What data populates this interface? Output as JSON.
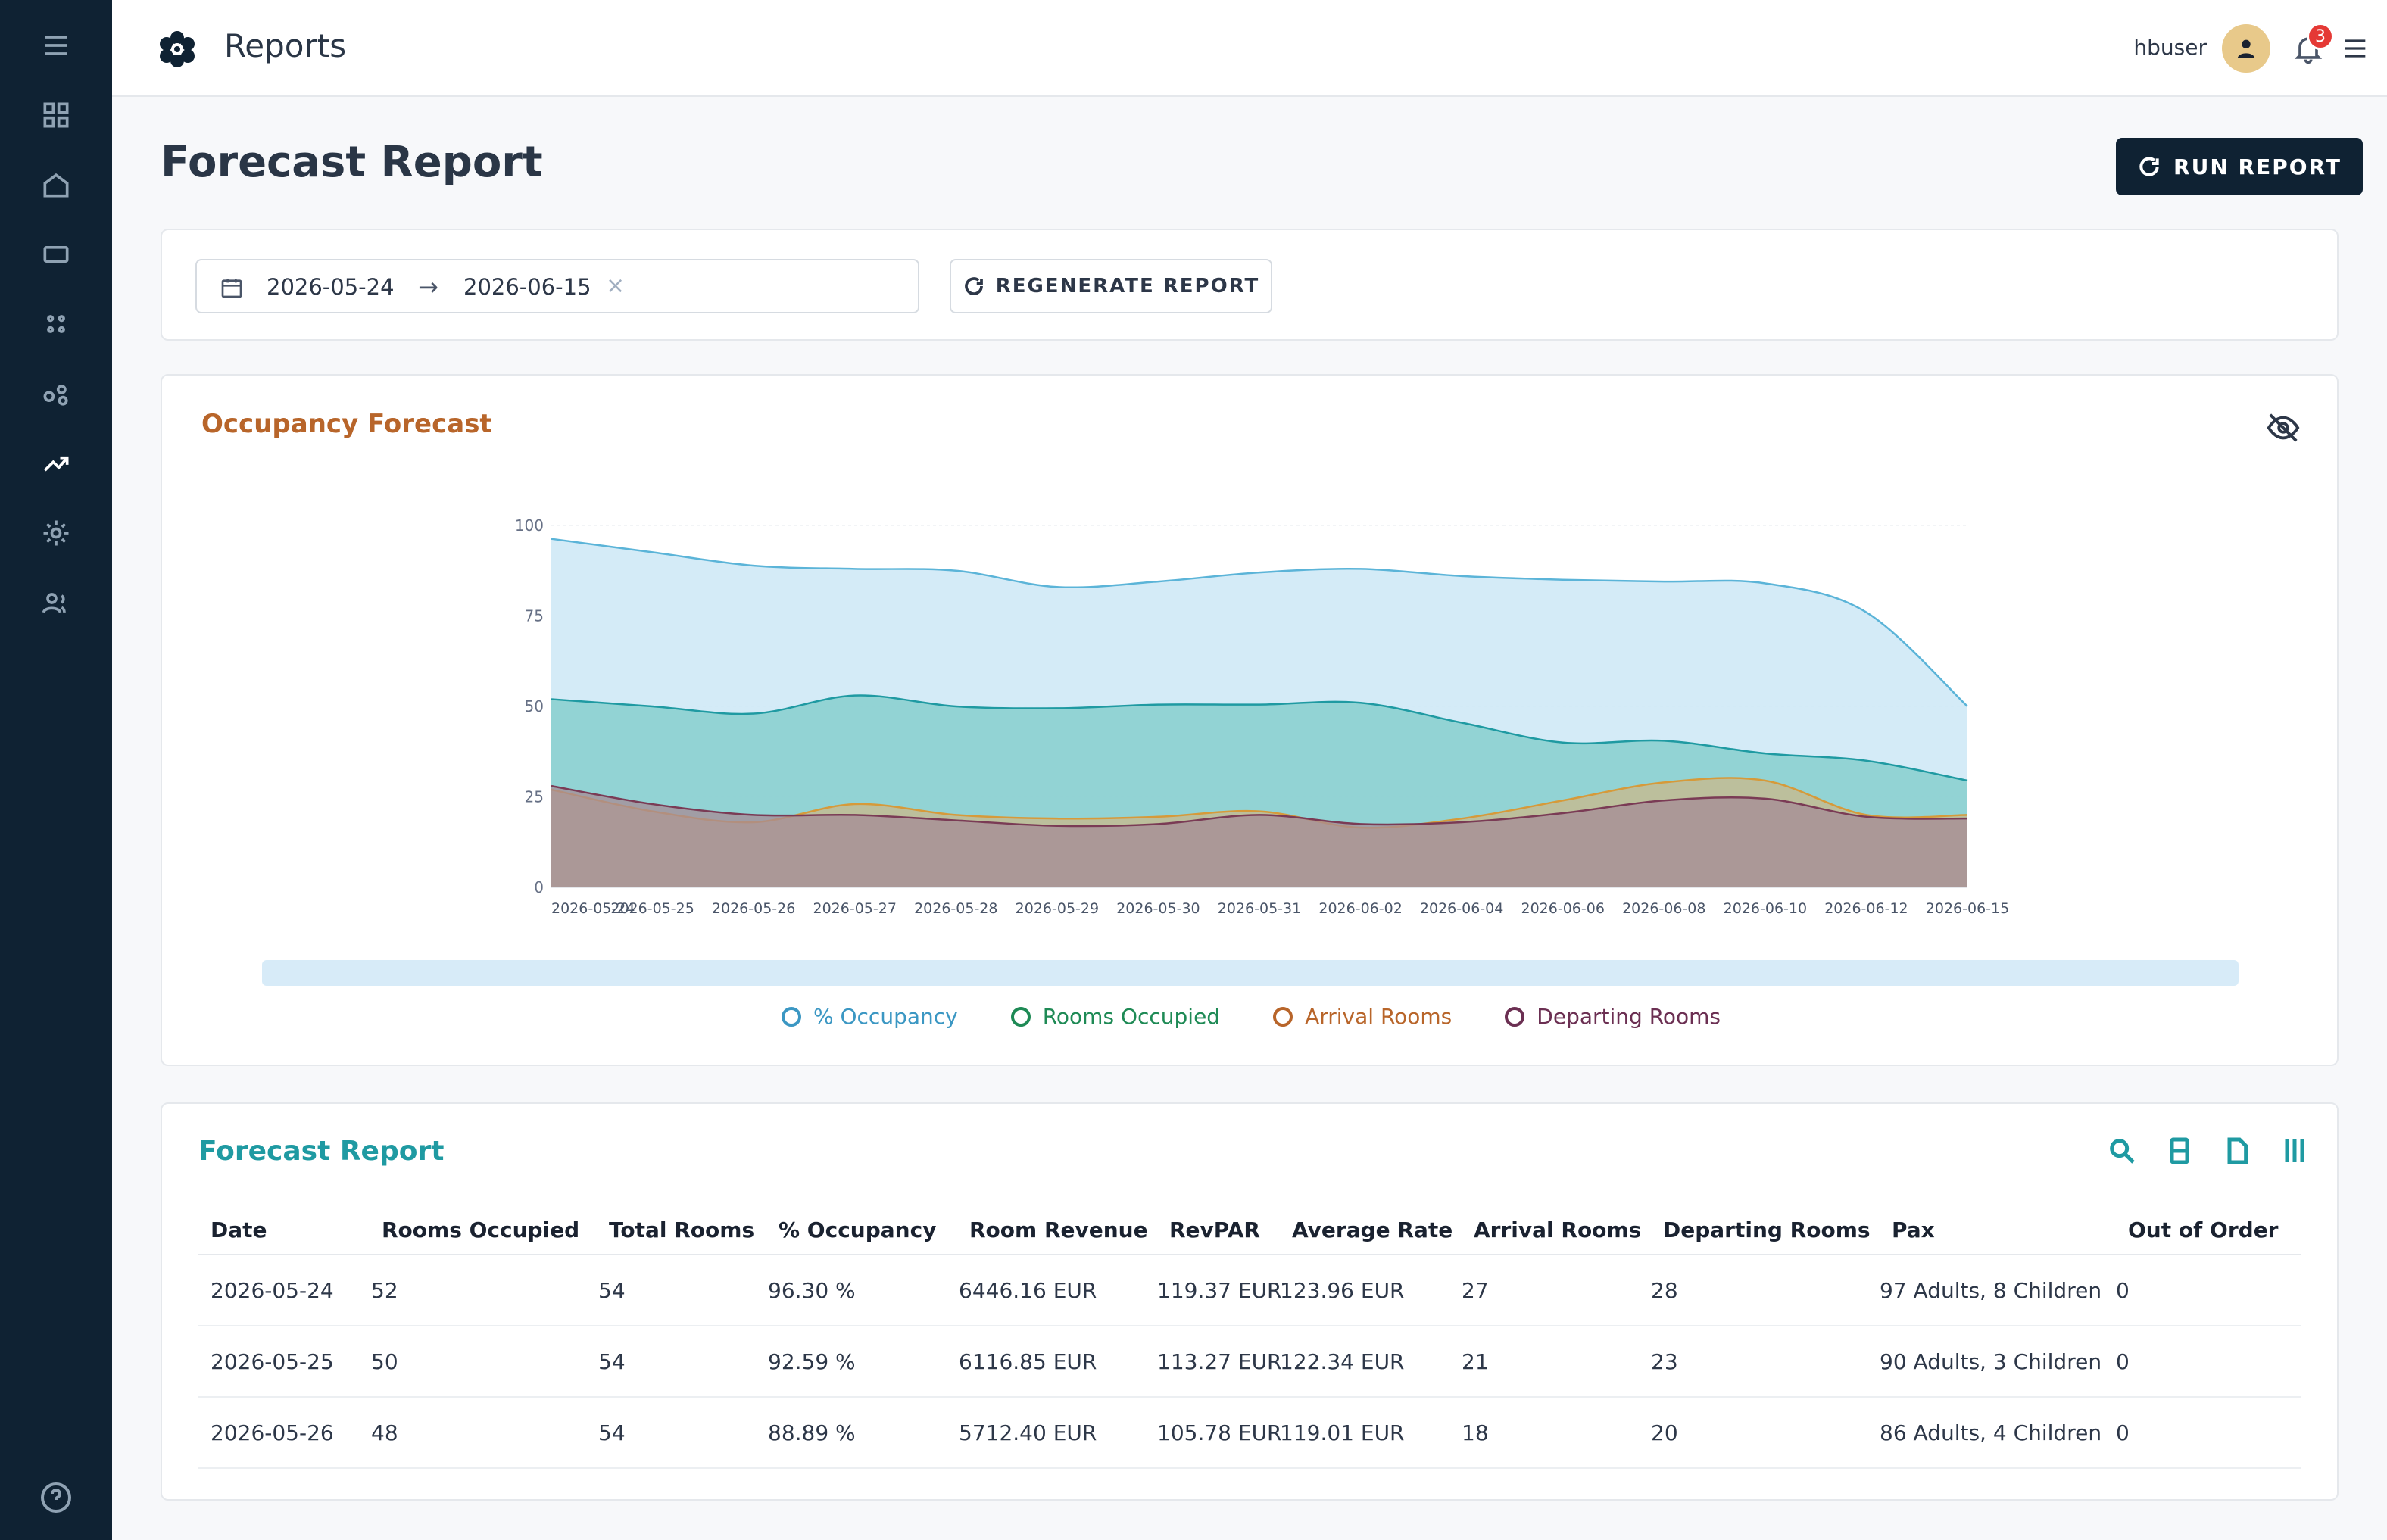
{
  "header": {
    "app_title": "Reports",
    "username": "hbuser",
    "notification_count": "3"
  },
  "sidebar": {
    "items": [
      {
        "icon": "menu-icon"
      },
      {
        "icon": "dashboard-icon"
      },
      {
        "icon": "home-icon"
      },
      {
        "icon": "rectangle-icon"
      },
      {
        "icon": "dots-grid-icon"
      },
      {
        "icon": "nodes-icon"
      },
      {
        "icon": "trending-up-icon",
        "active": true
      },
      {
        "icon": "gear-icon"
      },
      {
        "icon": "users-icon"
      }
    ],
    "footer_icon": "help-icon"
  },
  "page": {
    "title": "Forecast Report",
    "run_button": "RUN REPORT"
  },
  "filter": {
    "start_date": "2026-05-24",
    "end_date": "2026-06-15",
    "arrow": "→",
    "clear": "×",
    "regenerate_button": "REGENERATE REPORT"
  },
  "chart_card": {
    "title": "Occupancy Forecast"
  },
  "chart_data": {
    "type": "area",
    "title": "Occupancy Forecast",
    "ylim": [
      0,
      100
    ],
    "yticks": [
      0,
      25,
      50,
      75,
      100
    ],
    "grid": true,
    "legend_position": "bottom",
    "x": [
      "2026-05-24",
      "2026-05-25",
      "2026-05-26",
      "2026-05-27",
      "2026-05-28",
      "2026-05-29",
      "2026-05-30",
      "2026-05-31",
      "2026-06-02",
      "2026-06-04",
      "2026-06-06",
      "2026-06-08",
      "2026-06-10",
      "2026-06-12",
      "2026-06-15"
    ],
    "series": [
      {
        "name": "% Occupancy",
        "color": "#5bb4d8",
        "fill": "#cde8f6",
        "values": [
          96.3,
          92.59,
          88.89,
          88,
          87.5,
          83,
          84.5,
          87,
          88,
          86,
          85,
          84.5,
          84,
          76,
          50
        ]
      },
      {
        "name": "Rooms Occupied",
        "color": "#1f9aa2",
        "fill": "#7ccbc8",
        "values": [
          52,
          50,
          48,
          53,
          50,
          49.5,
          50.5,
          50.5,
          51,
          45.5,
          40,
          40.5,
          37,
          35,
          29.5
        ]
      },
      {
        "name": "Arrival Rooms",
        "color": "#d69a3a",
        "fill": "#c9b88a",
        "values": [
          27,
          21,
          18,
          23,
          20,
          19,
          19.5,
          21,
          16.5,
          19,
          24,
          29,
          29.5,
          20,
          20
        ]
      },
      {
        "name": "Departing Rooms",
        "color": "#7a3b55",
        "fill": "#a68b96",
        "values": [
          28,
          23,
          20,
          20,
          18.5,
          17,
          17.5,
          20,
          17.5,
          18,
          20.5,
          24,
          24.5,
          19.5,
          19
        ]
      }
    ]
  },
  "legend": {
    "items": [
      {
        "label": "% Occupancy",
        "color": "#3b97c3"
      },
      {
        "label": "Rooms Occupied",
        "color": "#1e8a55"
      },
      {
        "label": "Arrival Rooms",
        "color": "#b8652a"
      },
      {
        "label": "Departing Rooms",
        "color": "#6b2f52"
      }
    ]
  },
  "table": {
    "title": "Forecast Report",
    "columns": [
      "Date",
      "Rooms Occupied",
      "Total Rooms",
      "% Occupancy",
      "Room Revenue",
      "RevPAR",
      "Average Rate",
      "Arrival Rooms",
      "Departing Rooms",
      "Pax",
      "Out of Order"
    ],
    "rows": [
      [
        "2026-05-24",
        "52",
        "54",
        "96.30 %",
        "6446.16 EUR",
        "119.37 EUR",
        "123.96 EUR",
        "27",
        "28",
        "97 Adults, 8 Children",
        "0"
      ],
      [
        "2026-05-25",
        "50",
        "54",
        "92.59 %",
        "6116.85 EUR",
        "113.27 EUR",
        "122.34 EUR",
        "21",
        "23",
        "90 Adults, 3 Children",
        "0"
      ],
      [
        "2026-05-26",
        "48",
        "54",
        "88.89 %",
        "5712.40 EUR",
        "105.78 EUR",
        "119.01 EUR",
        "18",
        "20",
        "86 Adults, 4 Children",
        "0"
      ]
    ]
  }
}
